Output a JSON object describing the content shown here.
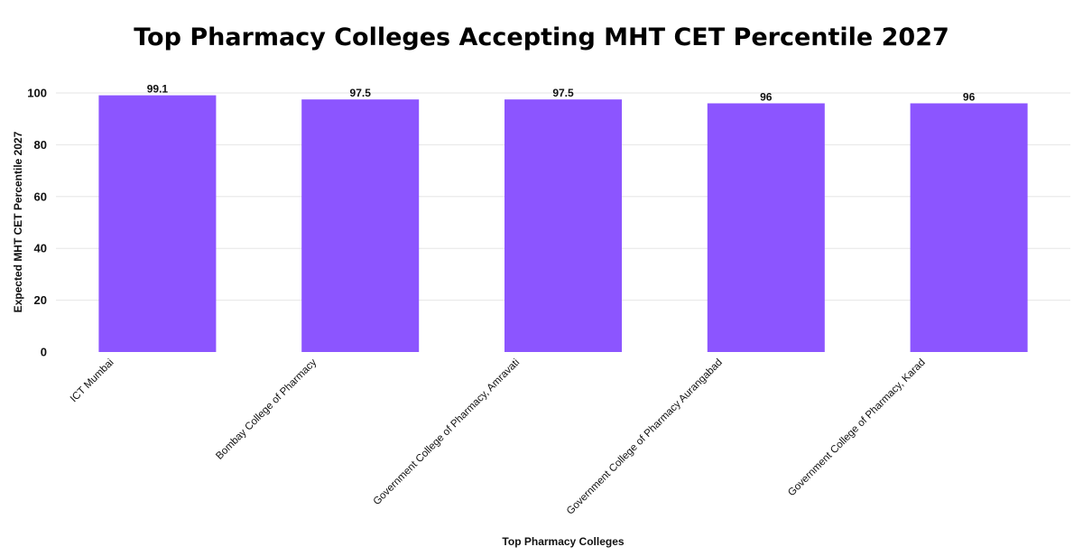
{
  "chart_data": {
    "type": "bar",
    "title": "Top Pharmacy Colleges Accepting MHT CET Percentile 2027",
    "xlabel": "Top Pharmacy Colleges",
    "ylabel": "Expected MHT CET Percentile 2027",
    "categories": [
      "ICT Mumbai",
      "Bombay College of Pharmacy",
      "Government College of Pharmacy, Amravati",
      "Government College of Pharmacy Aurangabad",
      "Government College of Pharmacy, Karad"
    ],
    "values": [
      99.1,
      97.5,
      97.5,
      96,
      96
    ],
    "data_labels": [
      "99.1",
      "97.5",
      "97.5",
      "96",
      "96"
    ],
    "ylim": [
      0,
      100
    ],
    "y_ticks": [
      "0",
      "20",
      "40",
      "60",
      "80",
      "100"
    ],
    "grid": true,
    "legend": "none",
    "bar_color": "#8c55ff",
    "grid_color": "#e6e6e6"
  }
}
